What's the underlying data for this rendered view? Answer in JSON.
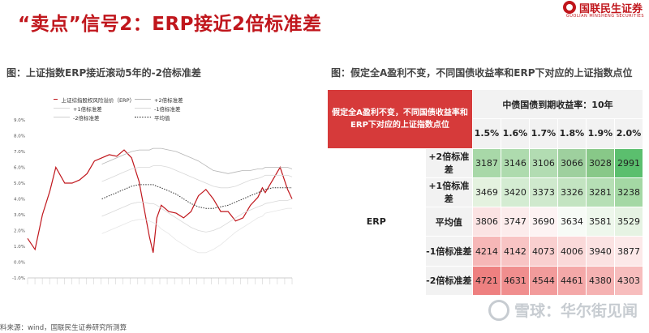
{
  "slide": {
    "title": "“卖点”信号2：ERP接近2倍标准差",
    "logo_cn": "国联民生证券",
    "logo_en": "GUOLIAN MINSHENG SECURITIES",
    "source": "料来源：wind，国联民生证券研究所测算",
    "watermark": "雪球：华尔街见闻",
    "colors": {
      "accent": "#c0161c",
      "table_corner": "#d63a3a"
    }
  },
  "left_panel": {
    "title": "图：上证指数ERP接近滚动5年的-2倍标准差"
  },
  "right_panel": {
    "title": "图：假定全A盈利不变，不同国债收益率和ERP下对应的上证指数点位"
  },
  "chart_data": [
    {
      "type": "line",
      "title": "",
      "xlabel": "",
      "ylabel": "",
      "ylim": [
        -0.01,
        0.09
      ],
      "y_ticks": [
        "9.0%",
        "8.0%",
        "7.0%",
        "6.0%",
        "5.0%",
        "4.0%",
        "3.0%",
        "2.0%",
        "1.0%",
        "0.0%",
        "-1.0%"
      ],
      "x_range": [
        "2007-01",
        "2024-10"
      ],
      "grid": false,
      "legend_position": "top-left",
      "legend": [
        "上证综指股权风险溢价（ERP）",
        "+2倍标准差",
        "+1倍标准差",
        "-1倍标准差",
        "-2倍标准差",
        "平均值"
      ],
      "x": [
        2007.0,
        2007.5,
        2008.0,
        2008.5,
        2008.9,
        2009.5,
        2010.0,
        2010.5,
        2011.0,
        2011.5,
        2012.0,
        2012.5,
        2013.0,
        2013.5,
        2014.0,
        2014.5,
        2014.8,
        2015.2,
        2015.45,
        2015.7,
        2016.0,
        2016.5,
        2017.0,
        2017.5,
        2018.0,
        2018.5,
        2019.0,
        2019.5,
        2020.0,
        2020.5,
        2021.0,
        2021.5,
        2022.0,
        2022.5,
        2022.8,
        2023.0,
        2023.5,
        2024.0,
        2024.5,
        2024.8
      ],
      "series": [
        {
          "name": "上证综指股权风险溢价（ERP）",
          "color": "#c0161c",
          "style": "solid",
          "width": 1.2,
          "values": [
            0.015,
            0.008,
            0.03,
            0.045,
            0.06,
            0.05,
            0.05,
            0.052,
            0.056,
            0.064,
            0.066,
            0.068,
            0.067,
            0.071,
            0.066,
            0.051,
            0.036,
            0.016,
            0.006,
            0.028,
            0.036,
            0.032,
            0.031,
            0.028,
            0.032,
            0.042,
            0.046,
            0.04,
            0.032,
            0.032,
            0.026,
            0.028,
            0.036,
            0.041,
            0.047,
            0.044,
            0.052,
            0.06,
            0.046,
            0.04
          ]
        },
        {
          "name": "+2倍标准差",
          "color": "#b5b5b5",
          "style": "solid",
          "width": 0.8,
          "values": [
            null,
            null,
            null,
            null,
            null,
            null,
            null,
            null,
            null,
            null,
            0.062,
            0.064,
            0.066,
            0.068,
            0.07,
            0.071,
            0.071,
            0.071,
            0.072,
            0.072,
            0.072,
            0.071,
            0.07,
            0.068,
            0.066,
            0.064,
            0.061,
            0.058,
            0.057,
            0.056,
            0.057,
            0.058,
            0.058,
            0.059,
            0.059,
            0.06,
            0.06,
            0.06,
            0.06,
            0.059
          ]
        },
        {
          "name": "+1倍标准差",
          "color": "#d8d8d8",
          "style": "solid",
          "width": 0.8,
          "values": [
            null,
            null,
            null,
            null,
            null,
            null,
            null,
            null,
            null,
            null,
            0.051,
            0.053,
            0.055,
            0.057,
            0.059,
            0.06,
            0.06,
            0.06,
            0.061,
            0.061,
            0.061,
            0.06,
            0.058,
            0.056,
            0.054,
            0.052,
            0.05,
            0.048,
            0.047,
            0.047,
            0.048,
            0.05,
            0.052,
            0.053,
            0.054,
            0.055,
            0.055,
            0.055,
            0.055,
            0.054
          ]
        },
        {
          "name": "平均值",
          "color": "#333333",
          "style": "dotted",
          "width": 1.0,
          "values": [
            null,
            null,
            null,
            null,
            null,
            null,
            null,
            null,
            null,
            null,
            0.04,
            0.042,
            0.044,
            0.046,
            0.048,
            0.049,
            0.049,
            0.049,
            0.049,
            0.048,
            0.047,
            0.045,
            0.043,
            0.04,
            0.037,
            0.035,
            0.034,
            0.034,
            0.035,
            0.036,
            0.038,
            0.04,
            0.042,
            0.044,
            0.045,
            0.046,
            0.047,
            0.047,
            0.047,
            0.047
          ]
        },
        {
          "name": "-1倍标准差",
          "color": "#d8d8d8",
          "style": "solid",
          "width": 0.8,
          "values": [
            null,
            null,
            null,
            null,
            null,
            null,
            null,
            null,
            null,
            null,
            0.029,
            0.031,
            0.033,
            0.035,
            0.037,
            0.038,
            0.038,
            0.037,
            0.037,
            0.036,
            0.034,
            0.031,
            0.028,
            0.025,
            0.022,
            0.02,
            0.019,
            0.02,
            0.022,
            0.025,
            0.028,
            0.031,
            0.033,
            0.035,
            0.036,
            0.037,
            0.038,
            0.039,
            0.039,
            0.04
          ]
        },
        {
          "name": "-2倍标准差",
          "color": "#e6e6e6",
          "style": "solid",
          "width": 0.8,
          "values": [
            null,
            null,
            null,
            null,
            null,
            null,
            null,
            null,
            null,
            null,
            0.018,
            0.02,
            0.022,
            0.024,
            0.026,
            0.027,
            0.027,
            0.026,
            0.025,
            0.024,
            0.021,
            0.018,
            0.014,
            0.011,
            0.008,
            0.006,
            0.006,
            0.008,
            0.011,
            0.015,
            0.019,
            0.022,
            0.025,
            0.028,
            0.029,
            0.031,
            0.032,
            0.033,
            0.034,
            0.034
          ]
        }
      ]
    },
    {
      "type": "table",
      "corner": "假定全A盈利不变，不同国债收益率和ERP下对应的上证指数点位",
      "group_header": "中债国债到期收益率：10年",
      "row_group": "ERP",
      "columns": [
        "1.5%",
        "1.6%",
        "1.7%",
        "1.8%",
        "1.9%",
        "2.0%"
      ],
      "rows": [
        {
          "label": "+2倍标准差",
          "values": [
            3187,
            3146,
            3106,
            3066,
            3028,
            2991
          ],
          "colors": [
            "#a8d8a8",
            "#aedbae",
            "#b2dcb2",
            "#9ed09e",
            "#88c888",
            "#5bbf6e"
          ]
        },
        {
          "label": "+1倍标准差",
          "values": [
            3469,
            3420,
            3373,
            3326,
            3281,
            3238
          ],
          "colors": [
            "#e4f2df",
            "#d4ecd2",
            "#cfe9cd",
            "#c3e4c1",
            "#b6dfb5",
            "#a4d8a4"
          ]
        },
        {
          "label": "平均值",
          "values": [
            3806,
            3747,
            3690,
            3634,
            3581,
            3529
          ],
          "colors": [
            "#fbe3e3",
            "#fcecec",
            "#fdf3f3",
            "#f7fbf6",
            "#eef7ec",
            "#e6f3e3"
          ]
        },
        {
          "label": "-1倍标准差",
          "values": [
            4214,
            4142,
            4073,
            4006,
            3940,
            3877
          ],
          "colors": [
            "#f6b7b7",
            "#f8c4c4",
            "#f9cfcf",
            "#fad9d9",
            "#fbe2e2",
            "#fce9e9"
          ]
        },
        {
          "label": "-2倍标准差",
          "values": [
            4721,
            4631,
            4544,
            4461,
            4380,
            4303
          ],
          "colors": [
            "#ee8080",
            "#f08e8e",
            "#f29b9b",
            "#f4a8a8",
            "#f5b2b2",
            "#f7bdbd"
          ]
        }
      ]
    }
  ]
}
